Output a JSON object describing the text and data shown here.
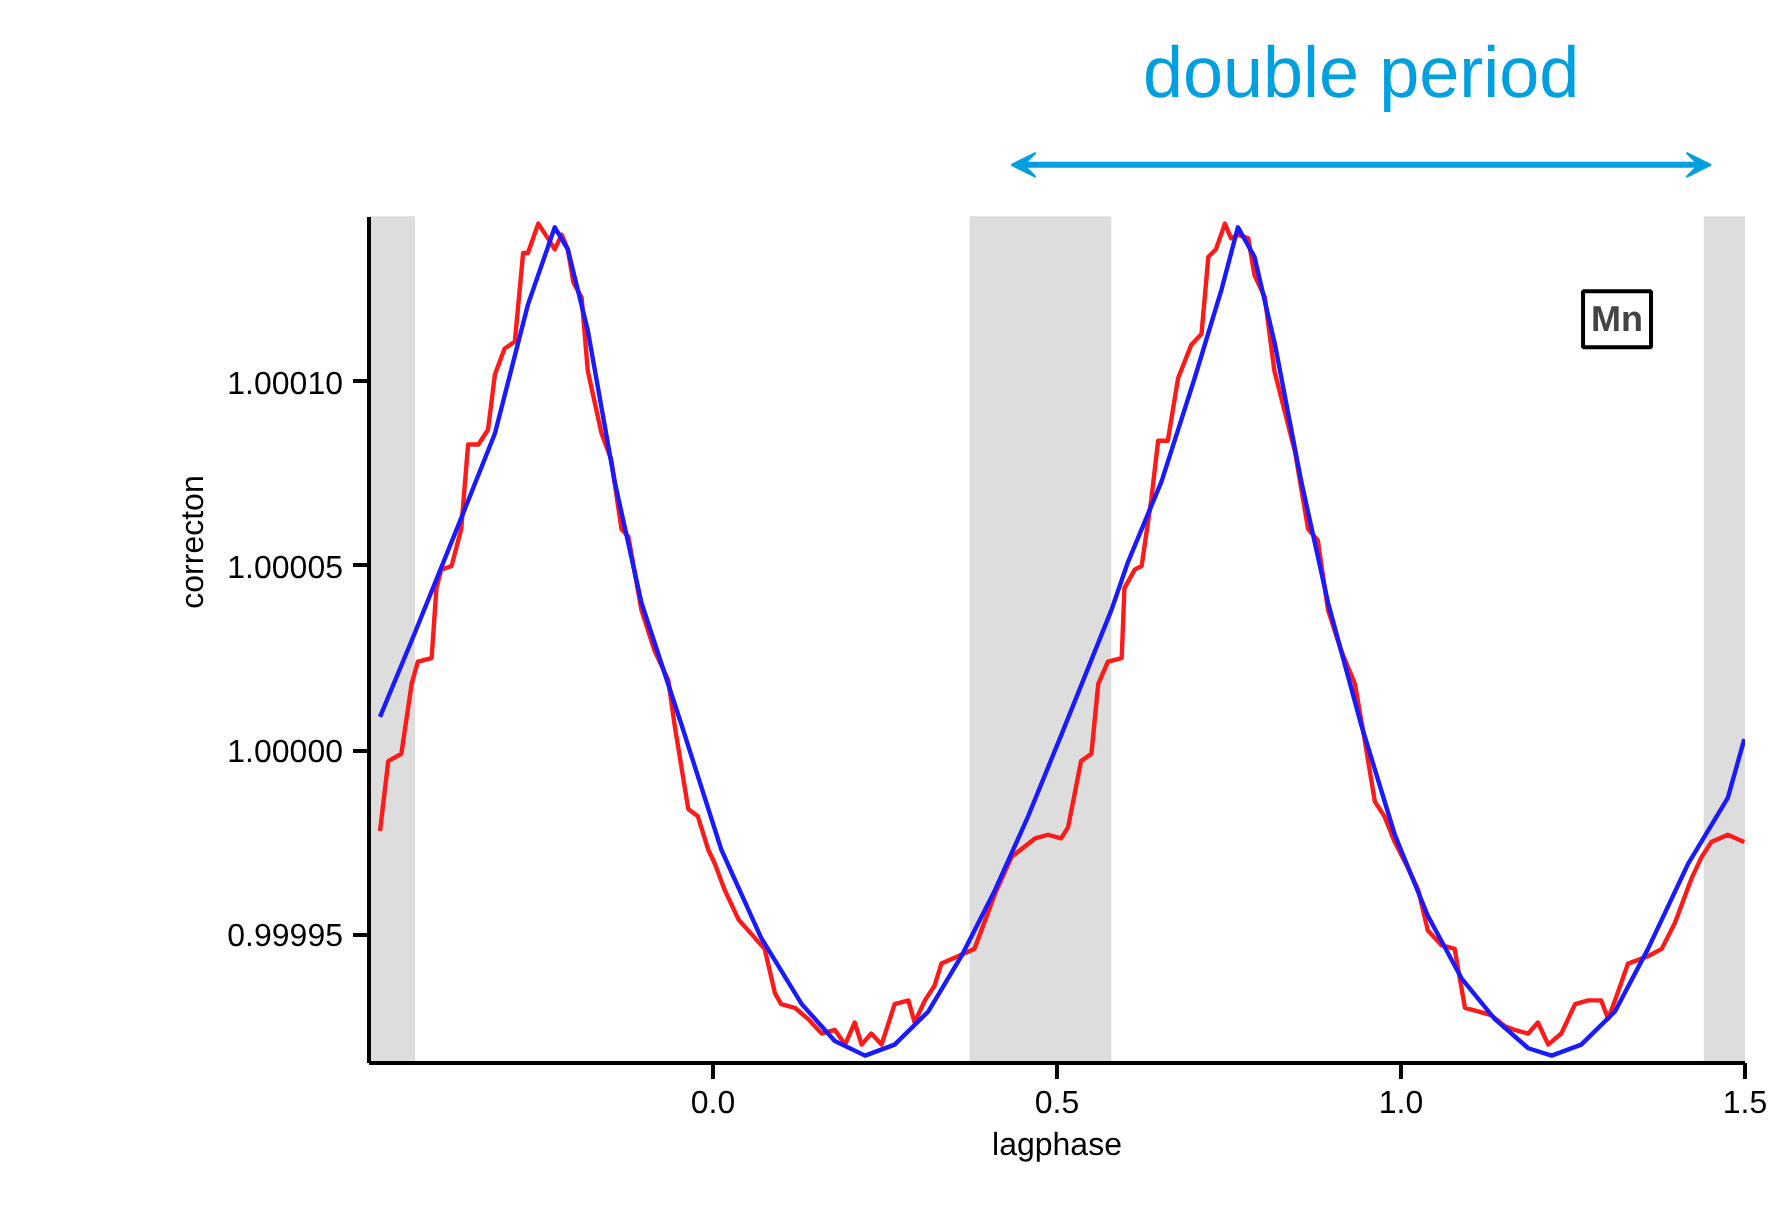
{
  "chart_data": {
    "type": "line",
    "xlabel": "lagphase",
    "ylabel": "correcton",
    "xlim": [
      -0.5,
      1.5
    ],
    "xticks": [
      {
        "value": 0,
        "label": "0.0"
      },
      0.5,
      {
        "value": 1,
        "label": "1.0"
      },
      1.5
    ],
    "ylim": [
      0.999915,
      1.000145
    ],
    "yticks": [
      0.99995,
      {
        "value": 1,
        "label": "1.00000"
      },
      1.00005,
      {
        "value": 1.0001,
        "label": "1.00010"
      }
    ],
    "grid": false,
    "marker": "none",
    "line_style": "solid",
    "bands": [
      {
        "axis": "x",
        "from": -0.5,
        "to": -0.433,
        "color": "#dddddd"
      },
      {
        "axis": "x",
        "from": 0.373,
        "to": 0.579,
        "color": "#dddddd"
      },
      {
        "axis": "x",
        "from": 1.44,
        "to": 1.5,
        "color": "#dddddd"
      }
    ],
    "annotations": [
      {
        "text": "Mn",
        "x": 1.314,
        "y": 1.000117
      },
      "double period"
    ],
    "series": [
      {
        "color": "#ff1a1a",
        "x": [
          -0.484,
          -0.472,
          -0.453,
          -0.438,
          -0.429,
          -0.409,
          -0.402,
          -0.395,
          -0.38,
          -0.366,
          -0.356,
          -0.341,
          -0.327,
          -0.317,
          -0.303,
          -0.288,
          -0.276,
          -0.269,
          -0.254,
          -0.24,
          -0.23,
          -0.22,
          -0.211,
          -0.203,
          -0.191,
          -0.182,
          -0.162,
          -0.148,
          -0.133,
          -0.123,
          -0.104,
          -0.085,
          -0.065,
          -0.056,
          -0.036,
          -0.022,
          -0.007,
          0.003,
          0.017,
          0.037,
          0.056,
          0.075,
          0.09,
          0.099,
          0.119,
          0.138,
          0.158,
          0.177,
          0.192,
          0.206,
          0.216,
          0.23,
          0.245,
          0.264,
          0.284,
          0.293,
          0.308,
          0.322,
          0.332,
          0.356,
          0.38,
          0.41,
          0.434,
          0.468,
          0.487,
          0.506,
          0.516,
          0.535,
          0.55,
          0.56,
          0.574,
          0.594,
          0.598,
          0.613,
          0.623,
          0.637,
          0.647,
          0.661,
          0.676,
          0.695,
          0.71,
          0.72,
          0.731,
          0.744,
          0.753,
          0.763,
          0.778,
          0.787,
          0.802,
          0.816,
          0.831,
          0.846,
          0.865,
          0.879,
          0.894,
          0.913,
          0.933,
          0.947,
          0.962,
          0.976,
          0.991,
          1.01,
          1.025,
          1.039,
          1.059,
          1.078,
          1.093,
          1.112,
          1.131,
          1.151,
          1.165,
          1.185,
          1.199,
          1.214,
          1.233,
          1.253,
          1.272,
          1.291,
          1.301,
          1.311,
          1.33,
          1.359,
          1.379,
          1.398,
          1.422,
          1.437,
          1.451,
          1.475,
          1.499
        ],
        "values": [
          0.999978,
          0.999997,
          0.999999,
          1.000018,
          1.000024,
          1.000025,
          1.000044,
          1.000049,
          1.00005,
          1.00006,
          1.000083,
          1.000083,
          1.000087,
          1.000102,
          1.000109,
          1.000111,
          1.000135,
          1.000135,
          1.000143,
          1.000139,
          1.000136,
          1.00014,
          1.000136,
          1.000127,
          1.000123,
          1.000103,
          1.000086,
          1.000079,
          1.00006,
          1.000058,
          1.000038,
          1.000027,
          1.000019,
          1.000007,
          0.999984,
          0.999982,
          0.999973,
          0.999969,
          0.999962,
          0.999954,
          0.99995,
          0.999946,
          0.999934,
          0.999931,
          0.99993,
          0.999927,
          0.999923,
          0.999924,
          0.99992,
          0.999926,
          0.99992,
          0.999923,
          0.99992,
          0.999931,
          0.999932,
          0.999926,
          0.999932,
          0.999936,
          0.999942,
          0.999944,
          0.999946,
          0.999961,
          0.999971,
          0.999976,
          0.999977,
          0.999976,
          0.999979,
          0.999997,
          0.999999,
          1.000018,
          1.000024,
          1.000025,
          1.000044,
          1.000049,
          1.00005,
          1.000068,
          1.000084,
          1.000084,
          1.000101,
          1.00011,
          1.000113,
          1.000134,
          1.000136,
          1.000143,
          1.000139,
          1.00014,
          1.000139,
          1.000129,
          1.000123,
          1.000103,
          1.000092,
          1.000081,
          1.00006,
          1.000057,
          1.000038,
          1.000027,
          1.000018,
          1.000003,
          0.999986,
          0.999982,
          0.999975,
          0.999968,
          0.999962,
          0.999951,
          0.999947,
          0.999946,
          0.99993,
          0.999929,
          0.999928,
          0.999925,
          0.999924,
          0.999923,
          0.999926,
          0.99992,
          0.999923,
          0.999931,
          0.999932,
          0.999932,
          0.999927,
          0.999932,
          0.999942,
          0.999944,
          0.999946,
          0.999953,
          0.999965,
          0.999971,
          0.999975,
          0.999977,
          0.999975
        ]
      },
      {
        "color": "#1a1aff",
        "x": [
          -0.484,
          -0.433,
          -0.366,
          -0.317,
          -0.269,
          -0.23,
          -0.211,
          -0.182,
          -0.143,
          -0.104,
          -0.046,
          0.012,
          0.07,
          0.129,
          0.177,
          0.221,
          0.264,
          0.313,
          0.361,
          0.41,
          0.458,
          0.506,
          0.579,
          0.603,
          0.652,
          0.7,
          0.739,
          0.763,
          0.787,
          0.817,
          0.855,
          0.894,
          0.942,
          0.991,
          1.039,
          1.088,
          1.136,
          1.185,
          1.219,
          1.262,
          1.311,
          1.359,
          1.417,
          1.475,
          1.499
        ],
        "values": [
          1.000009,
          1.000032,
          1.000063,
          1.000086,
          1.000121,
          1.000142,
          1.000136,
          1.000114,
          1.000073,
          1.00004,
          1.000007,
          0.999973,
          0.999949,
          0.999931,
          0.999921,
          0.999917,
          0.99992,
          0.999929,
          0.999944,
          0.999962,
          0.999982,
          1.000004,
          1.000038,
          1.000051,
          1.000073,
          1.000101,
          1.000125,
          1.000142,
          1.000134,
          1.00011,
          1.000073,
          1.00004,
          1.000007,
          0.999977,
          0.999955,
          0.999938,
          0.999927,
          0.999919,
          0.999917,
          0.99992,
          0.999929,
          0.999946,
          0.999969,
          0.999987,
          1.000003
        ]
      }
    ]
  }
}
